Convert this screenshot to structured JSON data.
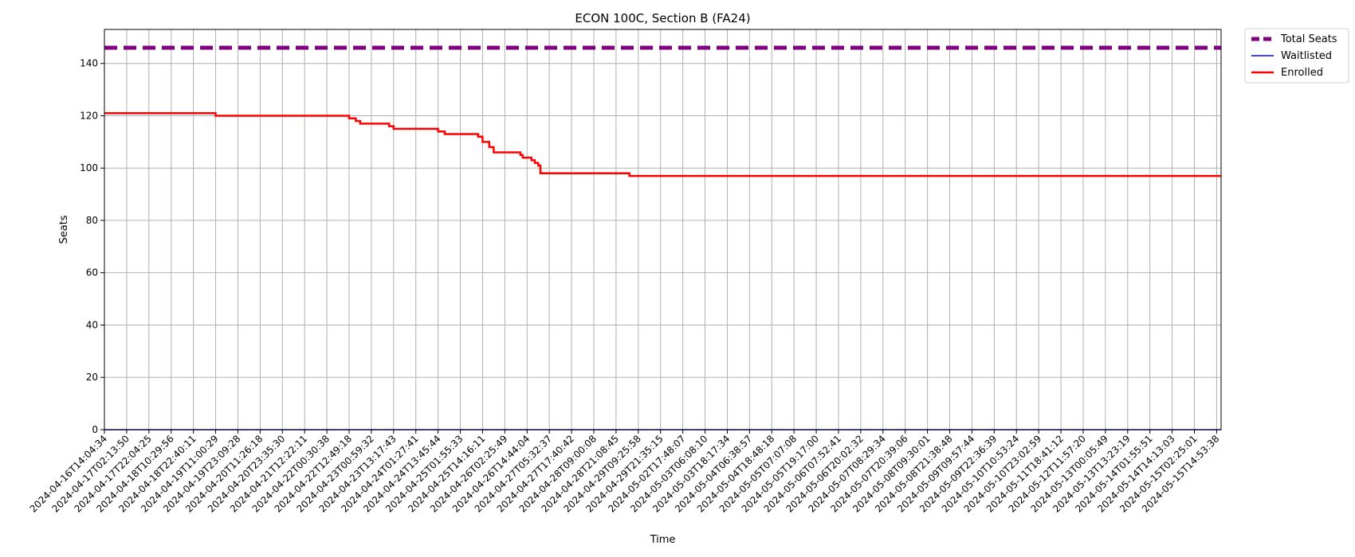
{
  "chart_data": {
    "type": "line",
    "title": "ECON 100C, Section B (FA24)",
    "xlabel": "Time",
    "ylabel": "Seats",
    "ylim": [
      0,
      153
    ],
    "yticks": [
      0,
      20,
      40,
      60,
      80,
      100,
      120,
      140
    ],
    "grid": true,
    "legend_position": "outside-top-right",
    "x_ticks": [
      "2024-04-16T14:04:34",
      "2024-04-17T02:13:50",
      "2024-04-17T22:04:25",
      "2024-04-18T10:29:56",
      "2024-04-18T22:40:11",
      "2024-04-19T11:00:29",
      "2024-04-19T23:09:28",
      "2024-04-20T11:26:18",
      "2024-04-20T23:35:30",
      "2024-04-21T12:22:11",
      "2024-04-22T00:30:38",
      "2024-04-22T12:49:18",
      "2024-04-23T00:59:32",
      "2024-04-23T13:17:43",
      "2024-04-24T01:27:41",
      "2024-04-24T13:45:44",
      "2024-04-25T01:55:33",
      "2024-04-25T14:16:11",
      "2024-04-26T02:25:49",
      "2024-04-26T14:44:04",
      "2024-04-27T05:32:37",
      "2024-04-27T17:40:42",
      "2024-04-28T09:00:08",
      "2024-04-28T21:08:45",
      "2024-04-29T09:25:58",
      "2024-04-29T21:35:15",
      "2024-05-02T17:48:07",
      "2024-05-03T06:08:10",
      "2024-05-03T18:17:34",
      "2024-05-04T06:38:57",
      "2024-05-04T18:48:18",
      "2024-05-05T07:07:08",
      "2024-05-05T19:17:00",
      "2024-05-06T07:52:41",
      "2024-05-06T20:02:32",
      "2024-05-07T08:29:34",
      "2024-05-07T20:39:06",
      "2024-05-08T09:30:01",
      "2024-05-08T21:38:48",
      "2024-05-09T09:57:44",
      "2024-05-09T22:36:39",
      "2024-05-10T10:53:24",
      "2024-05-10T23:02:59",
      "2024-05-11T18:41:12",
      "2024-05-12T11:57:20",
      "2024-05-13T00:05:49",
      "2024-05-13T13:23:19",
      "2024-05-14T01:55:51",
      "2024-05-14T14:13:03",
      "2024-05-15T02:25:01",
      "2024-05-15T14:53:38"
    ],
    "series": [
      {
        "name": "Total Seats",
        "color": "#800080",
        "style": "dashed",
        "points": [
          [
            0,
            146
          ],
          [
            50.2,
            146
          ]
        ]
      },
      {
        "name": "Waitlisted",
        "color": "#0000ff",
        "style": "solid",
        "points": [
          [
            0,
            0
          ],
          [
            50.2,
            0
          ]
        ]
      },
      {
        "name": "Enrolled",
        "color": "#ff0000",
        "style": "step",
        "points": [
          [
            0,
            121
          ],
          [
            5.0,
            121
          ],
          [
            5.0,
            120
          ],
          [
            11.0,
            120
          ],
          [
            11.0,
            119
          ],
          [
            11.3,
            119
          ],
          [
            11.3,
            118
          ],
          [
            11.5,
            118
          ],
          [
            11.5,
            117
          ],
          [
            12.8,
            117
          ],
          [
            12.8,
            116
          ],
          [
            13.0,
            116
          ],
          [
            13.0,
            115
          ],
          [
            15.0,
            115
          ],
          [
            15.0,
            114
          ],
          [
            15.3,
            114
          ],
          [
            15.3,
            113
          ],
          [
            16.8,
            113
          ],
          [
            16.8,
            112
          ],
          [
            17.0,
            112
          ],
          [
            17.0,
            110
          ],
          [
            17.3,
            110
          ],
          [
            17.3,
            108
          ],
          [
            17.5,
            108
          ],
          [
            17.5,
            106
          ],
          [
            18.7,
            106
          ],
          [
            18.7,
            105
          ],
          [
            18.8,
            105
          ],
          [
            18.8,
            104
          ],
          [
            19.2,
            104
          ],
          [
            19.2,
            103
          ],
          [
            19.35,
            103
          ],
          [
            19.35,
            102
          ],
          [
            19.5,
            102
          ],
          [
            19.5,
            101
          ],
          [
            19.6,
            101
          ],
          [
            19.6,
            98
          ],
          [
            23.6,
            98
          ],
          [
            23.6,
            97
          ],
          [
            50.2,
            97
          ]
        ]
      }
    ]
  }
}
